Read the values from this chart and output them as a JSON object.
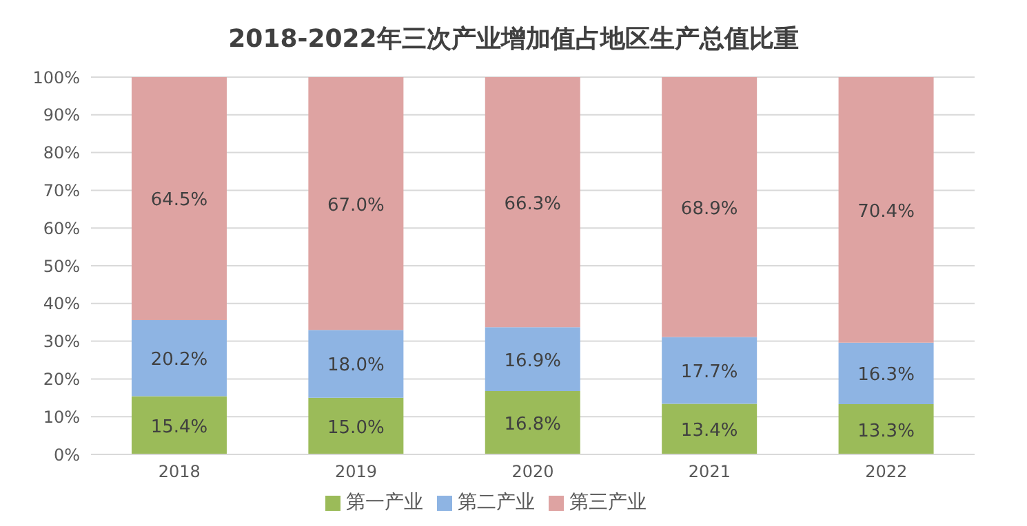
{
  "chart_data": {
    "type": "bar",
    "title": "2018-2022年三次产业增加值占地区生产总值比重",
    "stacked": true,
    "categories": [
      "2018",
      "2019",
      "2020",
      "2021",
      "2022"
    ],
    "series": [
      {
        "name": "第一产业",
        "color": "#9bbb59",
        "values": [
          15.4,
          15.0,
          16.8,
          13.4,
          13.3
        ],
        "value_labels": [
          "15.4%",
          "15.0%",
          "16.8%",
          "13.4%",
          "13.3%"
        ]
      },
      {
        "name": "第二产业",
        "color": "#8eb4e3",
        "values": [
          20.2,
          18.0,
          16.9,
          17.7,
          16.3
        ],
        "value_labels": [
          "20.2%",
          "18.0%",
          "16.9%",
          "17.7%",
          "16.3%"
        ]
      },
      {
        "name": "第三产业",
        "color": "#dea3a2",
        "values": [
          64.5,
          67.0,
          66.3,
          68.9,
          70.4
        ],
        "value_labels": [
          "64.5%",
          "67.0%",
          "66.3%",
          "68.9%",
          "70.4%"
        ]
      }
    ],
    "ylim": [
      0,
      100
    ],
    "yticks": [
      {
        "value": 0,
        "label": "0%"
      },
      {
        "value": 10,
        "label": "10%"
      },
      {
        "value": 20,
        "label": "20%"
      },
      {
        "value": 30,
        "label": "30%"
      },
      {
        "value": 40,
        "label": "40%"
      },
      {
        "value": 50,
        "label": "50%"
      },
      {
        "value": 60,
        "label": "60%"
      },
      {
        "value": 70,
        "label": "70%"
      },
      {
        "value": 80,
        "label": "80%"
      },
      {
        "value": 90,
        "label": "90%"
      },
      {
        "value": 100,
        "label": "100%"
      }
    ],
    "grid": "y",
    "legend": "bottom"
  }
}
